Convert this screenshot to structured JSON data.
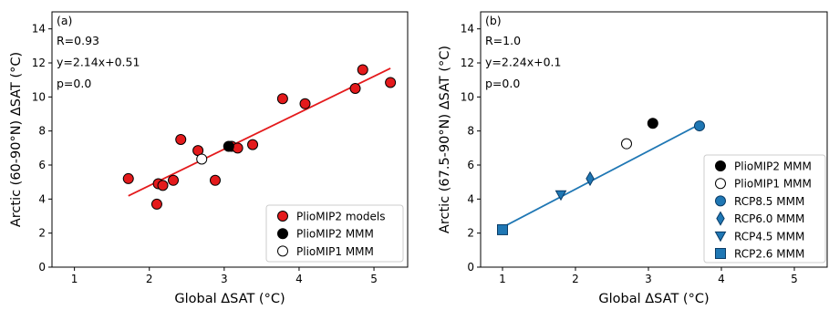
{
  "chart_data": [
    {
      "type": "scatter",
      "panel_label": "(a)",
      "stats": [
        "R=0.93",
        "y=2.14x+0.51",
        "p=0.0"
      ],
      "xlabel": "Global ΔSAT (°C)",
      "ylabel": "Arctic (60-90°N) ΔSAT (°C)",
      "xlim": [
        0.7,
        5.45
      ],
      "ylim": [
        0,
        15
      ],
      "xticks": [
        1,
        2,
        3,
        4,
        5
      ],
      "yticks": [
        0,
        2,
        4,
        6,
        8,
        10,
        12,
        14
      ],
      "legend_position": "lower-right",
      "series": [
        {
          "name": "PlioMIP2 models",
          "marker": "circle",
          "color": "#e41a1c",
          "edge": "#000000",
          "points": [
            [
              1.72,
              5.2
            ],
            [
              2.1,
              3.7
            ],
            [
              2.12,
              4.9
            ],
            [
              2.18,
              4.8
            ],
            [
              2.32,
              5.1
            ],
            [
              2.42,
              7.5
            ],
            [
              2.65,
              6.85
            ],
            [
              2.88,
              5.1
            ],
            [
              3.1,
              7.1
            ],
            [
              3.18,
              7.0
            ],
            [
              3.38,
              7.2
            ],
            [
              3.78,
              9.9
            ],
            [
              4.08,
              9.6
            ],
            [
              4.75,
              10.5
            ],
            [
              4.85,
              11.6
            ],
            [
              5.22,
              10.85
            ]
          ]
        },
        {
          "name": "PlioMIP2 MMM",
          "marker": "circle",
          "color": "#000000",
          "edge": "#000000",
          "points": [
            [
              3.06,
              7.1
            ]
          ]
        },
        {
          "name": "PlioMIP1 MMM",
          "marker": "circle",
          "color": "#ffffff",
          "edge": "#000000",
          "points": [
            [
              2.7,
              6.35
            ]
          ]
        }
      ],
      "fit_line": {
        "slope": 2.14,
        "intercept": 0.51,
        "x_range": [
          1.72,
          5.22
        ],
        "color": "#e41a1c"
      }
    },
    {
      "type": "scatter",
      "panel_label": "(b)",
      "stats": [
        "R=1.0",
        "y=2.24x+0.1",
        "p=0.0"
      ],
      "xlabel": "Global ΔSAT (°C)",
      "ylabel": "Arctic (67.5-90°N) ΔSAT (°C)",
      "xlim": [
        0.7,
        5.45
      ],
      "ylim": [
        0,
        15
      ],
      "xticks": [
        1,
        2,
        3,
        4,
        5
      ],
      "yticks": [
        0,
        2,
        4,
        6,
        8,
        10,
        12,
        14
      ],
      "legend_position": "lower-right",
      "series": [
        {
          "name": "PlioMIP2 MMM",
          "marker": "circle",
          "color": "#000000",
          "edge": "#000000",
          "points": [
            [
              3.06,
              8.45
            ]
          ]
        },
        {
          "name": "PlioMIP1 MMM",
          "marker": "circle",
          "color": "#ffffff",
          "edge": "#000000",
          "points": [
            [
              2.7,
              7.25
            ]
          ]
        },
        {
          "name": "RCP8.5 MMM",
          "marker": "circle",
          "color": "#1f77b4",
          "edge": "#0b3c66",
          "points": [
            [
              3.7,
              8.3
            ]
          ]
        },
        {
          "name": "RCP6.0 MMM",
          "marker": "diamond",
          "color": "#1f77b4",
          "edge": "#0b3c66",
          "points": [
            [
              2.2,
              5.2
            ]
          ]
        },
        {
          "name": "RCP4.5 MMM",
          "marker": "triangle-down",
          "color": "#1f77b4",
          "edge": "#0b3c66",
          "points": [
            [
              1.8,
              4.25
            ]
          ]
        },
        {
          "name": "RCP2.6 MMM",
          "marker": "square",
          "color": "#1f77b4",
          "edge": "#0b3c66",
          "points": [
            [
              1.0,
              2.2
            ]
          ]
        }
      ],
      "fit_line": {
        "slope": 2.24,
        "intercept": 0.1,
        "x_range": [
          1.0,
          3.7
        ],
        "color": "#1f77b4"
      }
    }
  ]
}
